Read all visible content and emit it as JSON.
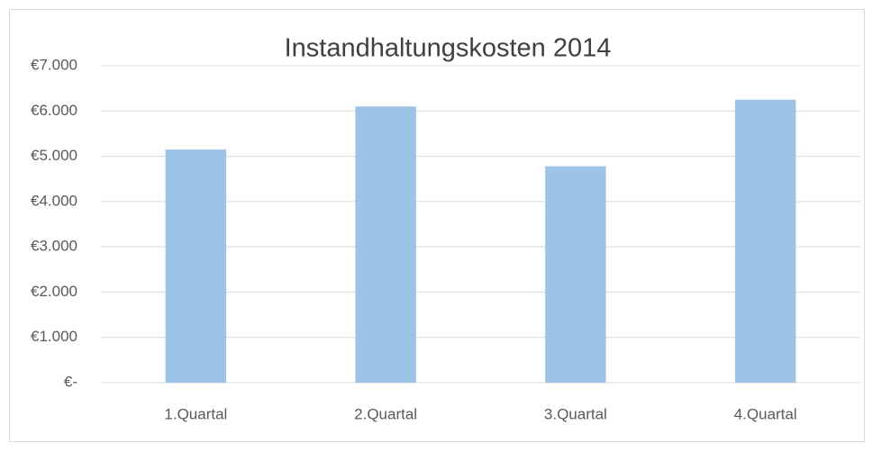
{
  "chart_data": {
    "type": "bar",
    "title": "Instandhaltungskosten 2014",
    "categories": [
      "1.Quartal",
      "2.Quartal",
      "3.Quartal",
      "4.Quartal"
    ],
    "values": [
      5150,
      6100,
      4780,
      6250
    ],
    "color": "#9dc3e6",
    "ylim": [
      0,
      7000
    ],
    "yticks": [
      {
        "value": 0,
        "label": "€-"
      },
      {
        "value": 1000,
        "label": "€1.000"
      },
      {
        "value": 2000,
        "label": "€2.000"
      },
      {
        "value": 3000,
        "label": "€3.000"
      },
      {
        "value": 4000,
        "label": "€4.000"
      },
      {
        "value": 5000,
        "label": "€5.000"
      },
      {
        "value": 6000,
        "label": "€6.000"
      },
      {
        "value": 7000,
        "label": "€7.000"
      }
    ],
    "grid": true
  }
}
